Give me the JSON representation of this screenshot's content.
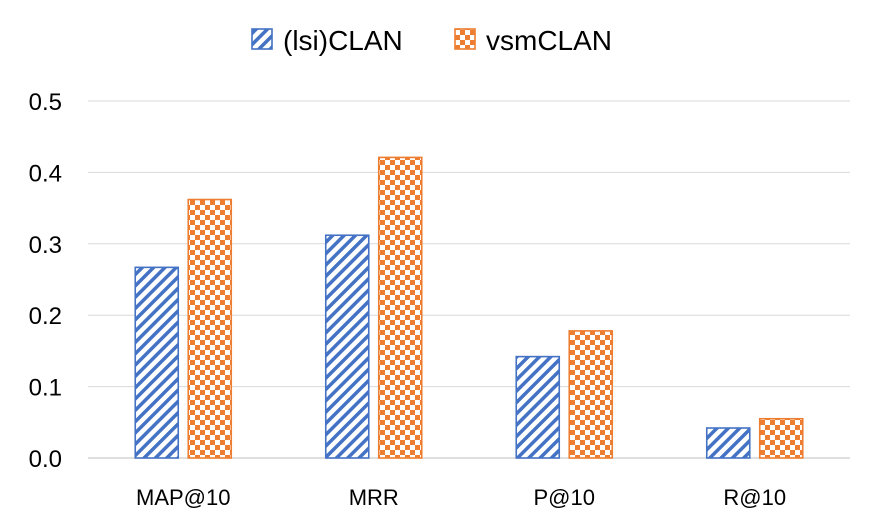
{
  "chart_data": {
    "type": "bar",
    "categories": [
      "MAP@10",
      "MRR",
      "P@10",
      "R@10"
    ],
    "series": [
      {
        "name": "(lsi)CLAN",
        "values": [
          0.267,
          0.312,
          0.142,
          0.042
        ],
        "color": "#4472C4",
        "pattern": "diagonal-stripes"
      },
      {
        "name": "vsmCLAN",
        "values": [
          0.362,
          0.421,
          0.178,
          0.055
        ],
        "color": "#ED7D31",
        "pattern": "checkerboard"
      }
    ],
    "title": "",
    "xlabel": "",
    "ylabel": "",
    "ylim": [
      0,
      0.5
    ],
    "yticks": [
      "0.0",
      "0.1",
      "0.2",
      "0.3",
      "0.4",
      "0.5"
    ],
    "grid": true,
    "legend_position": "top-center"
  }
}
